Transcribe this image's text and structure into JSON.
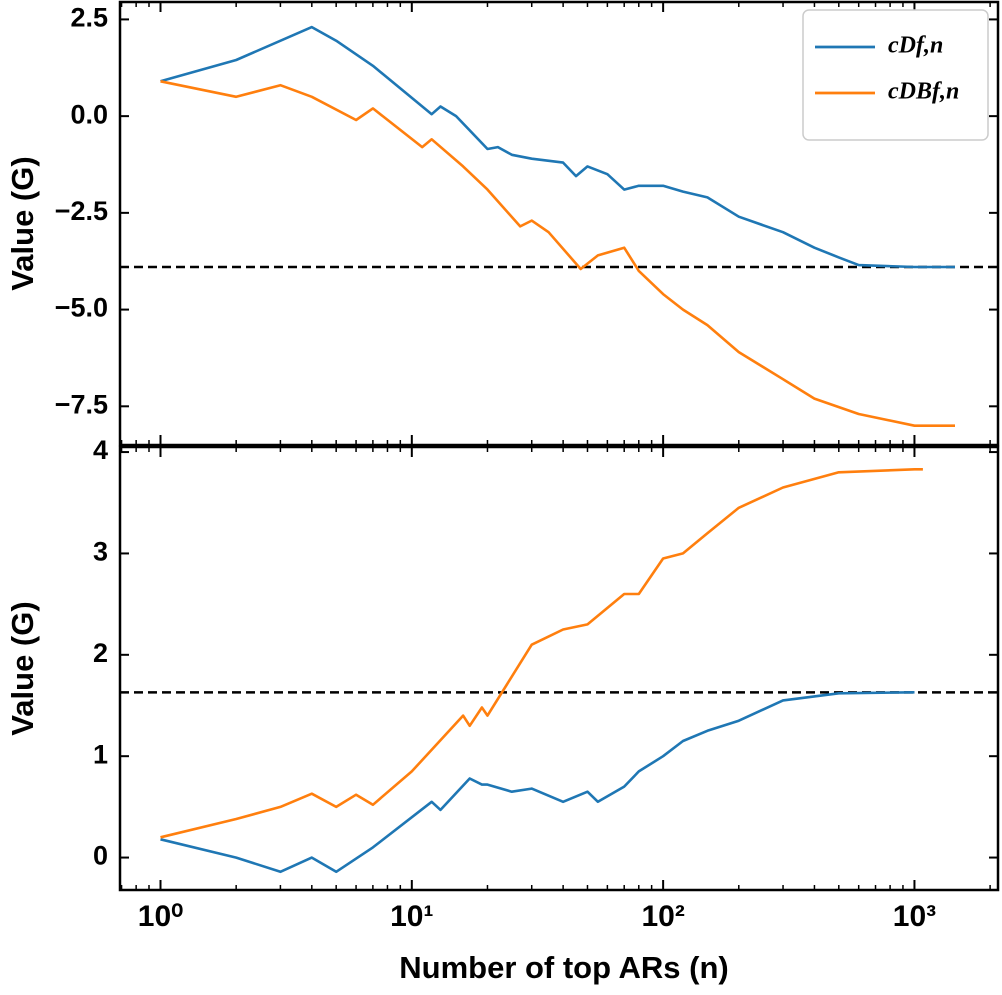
{
  "chart_data": [
    {
      "type": "line",
      "xscale": "log",
      "xlim": [
        0.69,
        2150
      ],
      "xticks": [
        1,
        10,
        100,
        1000
      ],
      "ylim": [
        -8.5,
        2.95
      ],
      "yticks": [
        {
          "value": -7.5,
          "label": "−7.5"
        },
        {
          "value": -5,
          "label": "−5.0"
        },
        {
          "value": -2.5,
          "label": "−2.5"
        },
        {
          "value": 0,
          "label": "0.0"
        },
        2.5
      ],
      "ylabel": "Value (G)",
      "hline": -3.9,
      "legend": "upper right",
      "series": [
        {
          "name": "cDf,n",
          "color": "#1f77b4",
          "x": [
            1,
            2,
            4,
            5,
            7,
            12,
            13,
            15,
            20,
            22,
            25,
            30,
            40,
            45,
            50,
            60,
            70,
            80,
            100,
            120,
            150,
            200,
            300,
            400,
            500,
            600,
            1000,
            1450
          ],
          "values": [
            0.9,
            1.45,
            2.3,
            1.95,
            1.3,
            0.05,
            0.25,
            0.0,
            -0.85,
            -0.8,
            -1.0,
            -1.1,
            -1.2,
            -1.55,
            -1.3,
            -1.5,
            -1.9,
            -1.8,
            -1.8,
            -1.95,
            -2.1,
            -2.6,
            -3.0,
            -3.4,
            -3.65,
            -3.85,
            -3.9,
            -3.9
          ]
        },
        {
          "name": "cDBf,n",
          "color": "#ff7f0e",
          "x": [
            1,
            2,
            3,
            4,
            6,
            7,
            11,
            12,
            16,
            20,
            27,
            30,
            35,
            47,
            55,
            70,
            80,
            100,
            120,
            150,
            200,
            300,
            400,
            600,
            1000,
            1450
          ],
          "values": [
            0.9,
            0.5,
            0.8,
            0.5,
            -0.1,
            0.2,
            -0.8,
            -0.6,
            -1.3,
            -1.9,
            -2.85,
            -2.7,
            -3.0,
            -3.95,
            -3.6,
            -3.4,
            -4.0,
            -4.6,
            -5.0,
            -5.4,
            -6.1,
            -6.8,
            -7.3,
            -7.7,
            -8.0,
            -8.0
          ]
        }
      ]
    },
    {
      "type": "line",
      "xscale": "log",
      "xlim": [
        0.69,
        2150
      ],
      "xticks": [
        {
          "value": 1,
          "label": "10⁰"
        },
        {
          "value": 10,
          "label": "10¹"
        },
        {
          "value": 100,
          "label": "10²"
        },
        {
          "value": 1000,
          "label": "10³"
        }
      ],
      "ylim": [
        -0.32,
        4.05
      ],
      "yticks": [
        0,
        1,
        2,
        3,
        4
      ],
      "ylabel": "Value (G)",
      "xlabel": "Number of top ARs (n)",
      "hline": 1.63,
      "series": [
        {
          "color": "#1f77b4",
          "x": [
            1,
            2,
            3,
            4,
            5,
            7,
            12,
            13,
            17,
            19,
            20,
            25,
            30,
            40,
            50,
            55,
            70,
            80,
            100,
            120,
            150,
            200,
            300,
            500,
            1000
          ],
          "values": [
            0.18,
            0.0,
            -0.14,
            0.0,
            -0.14,
            0.1,
            0.55,
            0.47,
            0.78,
            0.72,
            0.72,
            0.65,
            0.68,
            0.55,
            0.65,
            0.55,
            0.7,
            0.85,
            1.0,
            1.15,
            1.25,
            1.35,
            1.55,
            1.62,
            1.63
          ]
        },
        {
          "color": "#ff7f0e",
          "x": [
            1,
            2,
            3,
            4,
            5,
            6,
            7,
            10,
            16,
            17,
            19,
            20,
            30,
            40,
            50,
            70,
            80,
            100,
            120,
            150,
            200,
            300,
            500,
            1000,
            1080
          ],
          "values": [
            0.2,
            0.38,
            0.5,
            0.63,
            0.5,
            0.62,
            0.52,
            0.85,
            1.4,
            1.3,
            1.48,
            1.4,
            2.1,
            2.25,
            2.3,
            2.6,
            2.6,
            2.95,
            3.0,
            3.2,
            3.45,
            3.65,
            3.8,
            3.83,
            3.83
          ]
        }
      ]
    }
  ]
}
